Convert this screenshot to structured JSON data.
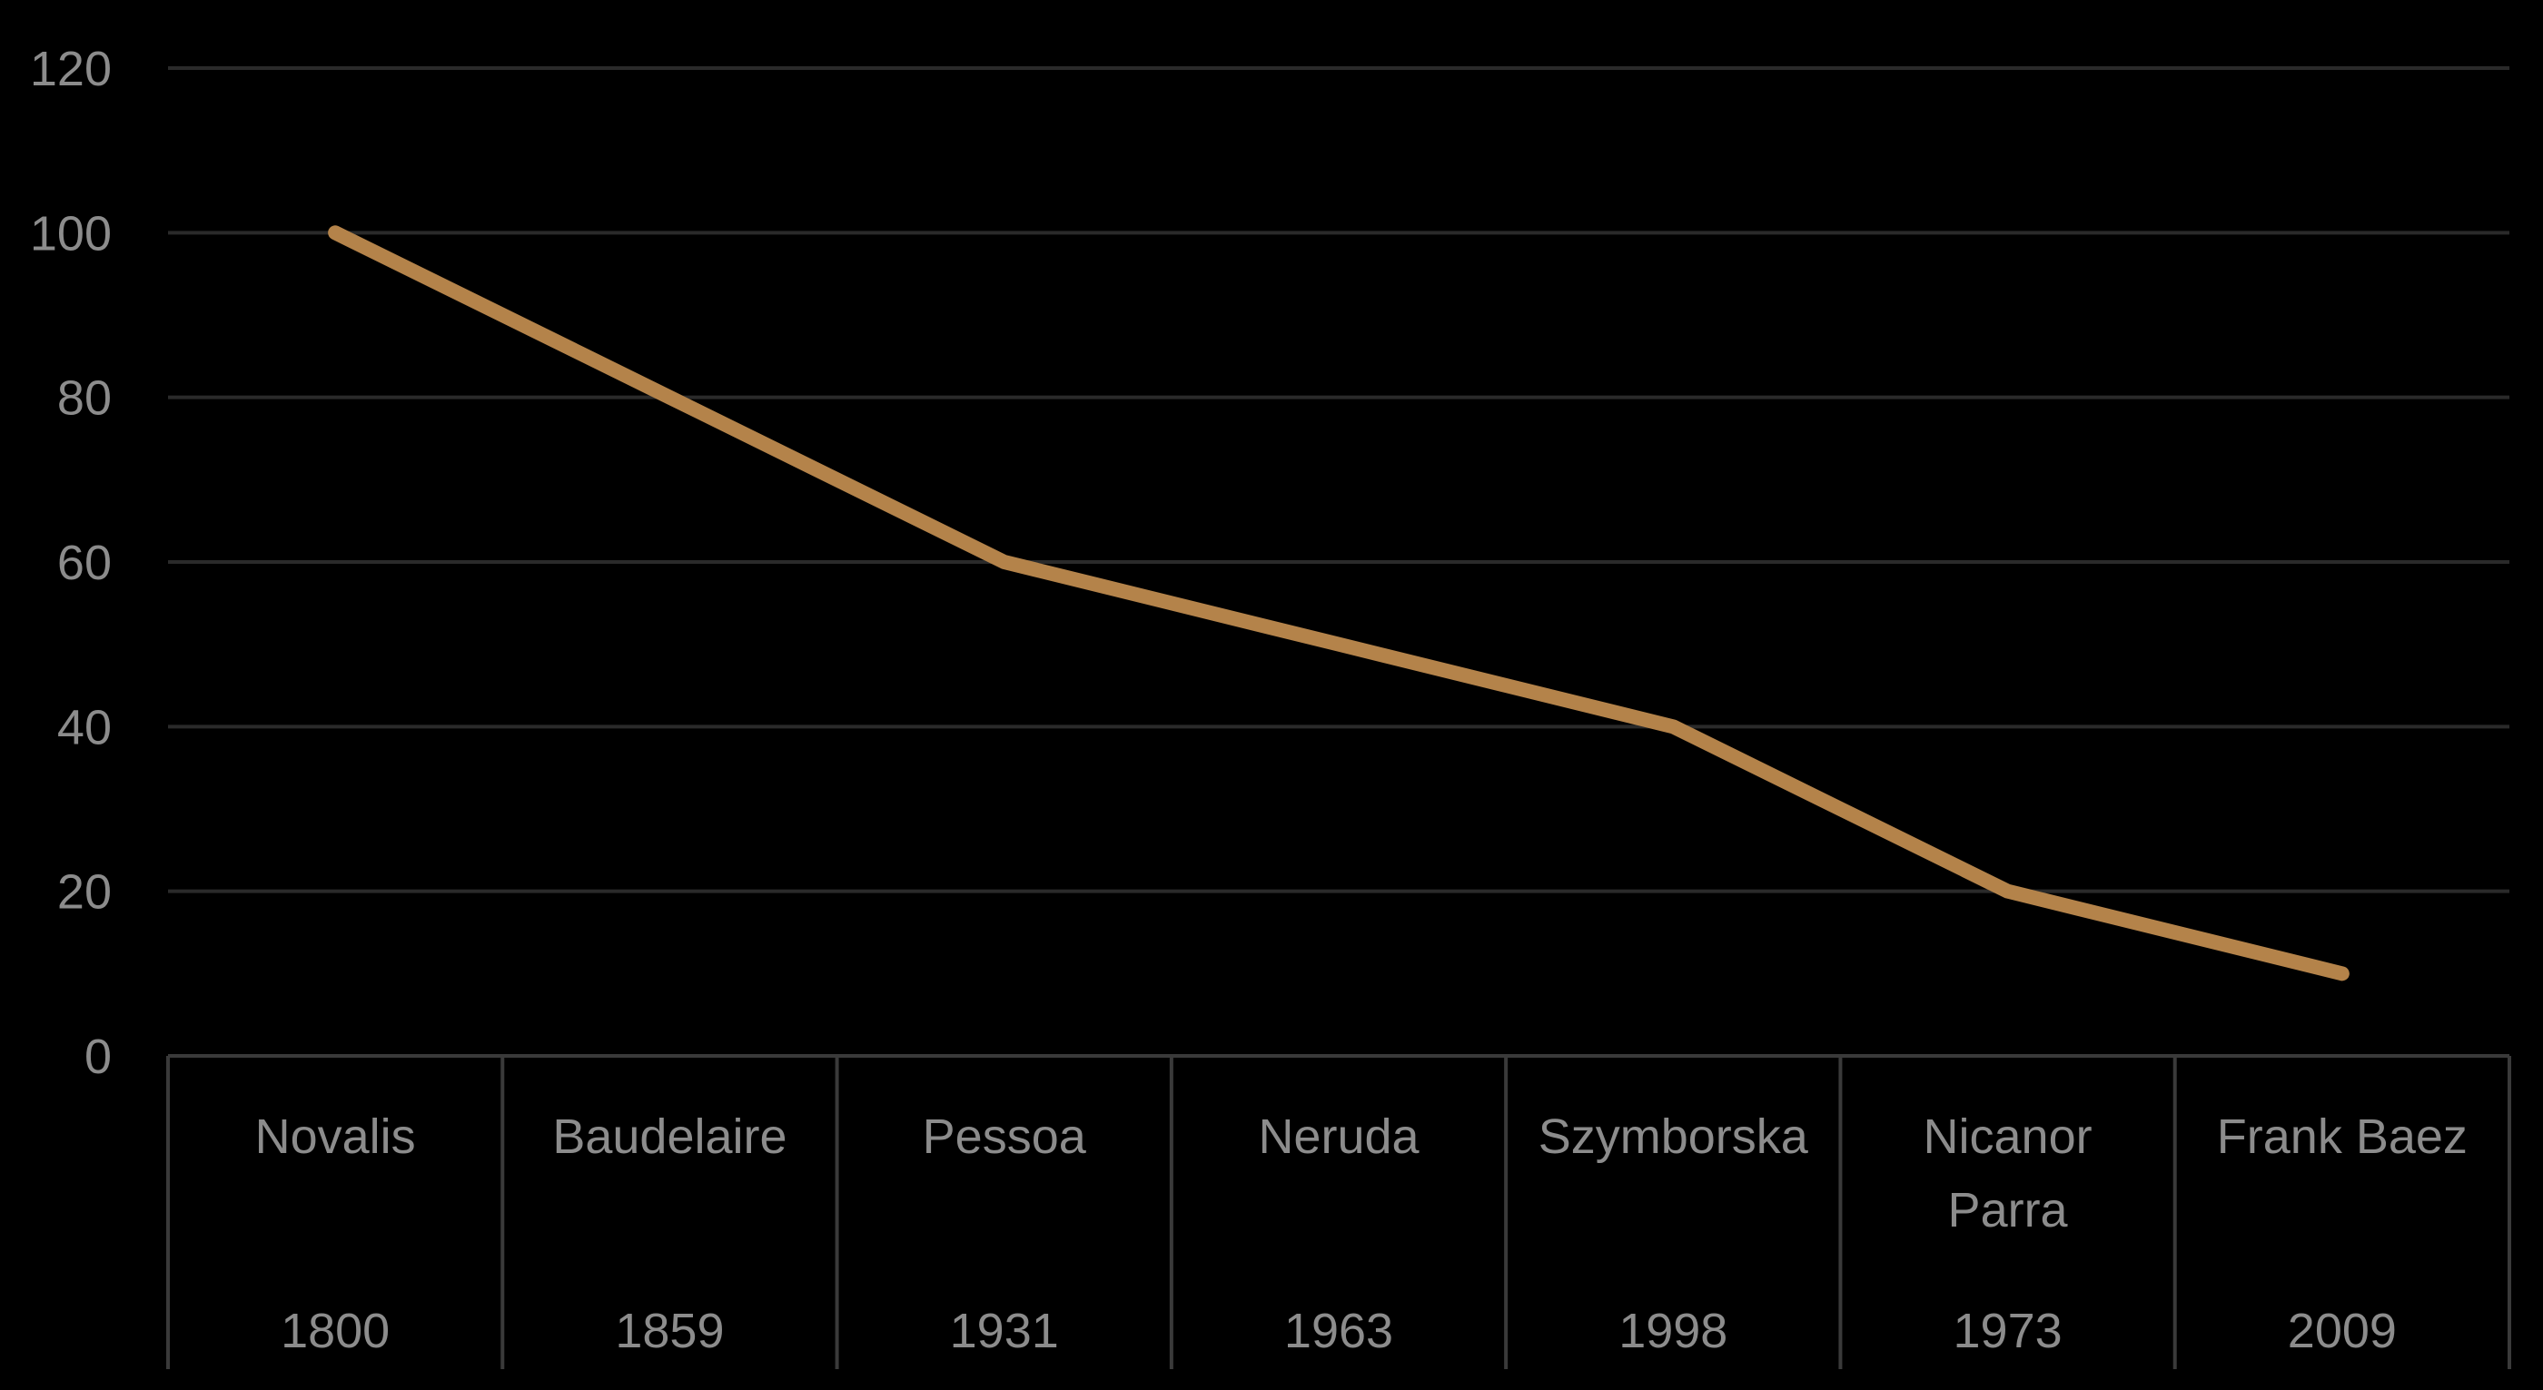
{
  "chart_data": {
    "type": "line",
    "title": "",
    "xlabel": "",
    "ylabel": "",
    "ylim": [
      0,
      120
    ],
    "yticks": [
      "0",
      "20",
      "40",
      "60",
      "80",
      "100",
      "120"
    ],
    "grid": true,
    "legend": "none",
    "categories": [
      {
        "name": "Novalis",
        "year": "1800"
      },
      {
        "name": "Baudelaire",
        "year": "1859"
      },
      {
        "name": "Pessoa",
        "year": "1931"
      },
      {
        "name": "Neruda",
        "year": "1963"
      },
      {
        "name": "Szymborska",
        "year": "1998"
      },
      {
        "name": "Nicanor Parra",
        "year": "1973"
      },
      {
        "name": "Frank Baez",
        "year": "2009"
      }
    ],
    "series": [
      {
        "values": [
          100,
          80,
          60,
          50,
          40,
          20,
          10
        ]
      }
    ],
    "colors": {
      "background": "#000000",
      "line": "#b4834a",
      "grid": "#2a2a2a",
      "axis": "#3a3a3a",
      "text": "#8c8c8c"
    }
  }
}
